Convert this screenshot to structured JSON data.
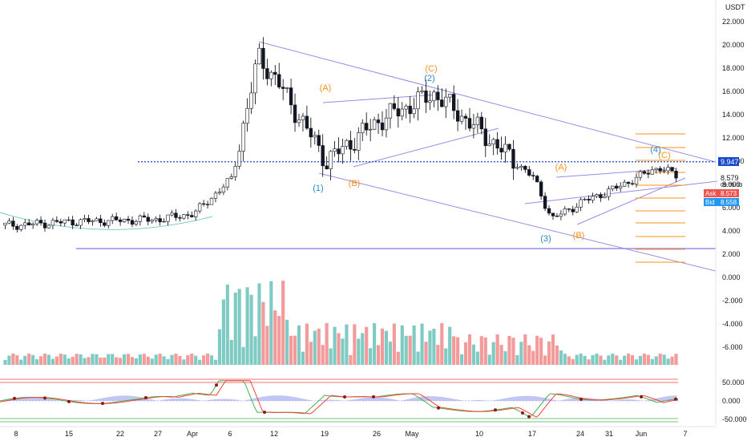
{
  "chart_data": {
    "type": "candlestick",
    "quote_currency": "USDT",
    "price_axis": {
      "ticks": [
        "22.000",
        "20.000",
        "18.000",
        "16.000",
        "14.000",
        "12.000",
        "10.000",
        "8.000",
        "6.000",
        "4.000",
        "2.000",
        "0.000",
        "-2.000",
        "-4.000",
        "-6.000"
      ],
      "range": [
        -7.0,
        23.0
      ]
    },
    "time_axis": {
      "ticks": [
        "8",
        "15",
        "22",
        "27",
        "Apr",
        "6",
        "12",
        "19",
        "26",
        "May",
        "10",
        "17",
        "24",
        "31",
        "Jun",
        "7"
      ]
    },
    "markers": {
      "last_price": "9.947",
      "current_price": "8.579",
      "countdown": "09:05:03",
      "ask": {
        "label": "Ask",
        "value": "8.573"
      },
      "bid": {
        "label": "Bid",
        "value": "8.558"
      }
    },
    "price_series_sampled": [
      {
        "date": "Mar 8",
        "close": 4.5
      },
      {
        "date": "Mar 15",
        "close": 4.8
      },
      {
        "date": "Mar 22",
        "close": 4.9
      },
      {
        "date": "Mar 27",
        "close": 5.0
      },
      {
        "date": "Apr 1",
        "close": 5.5
      },
      {
        "date": "Apr 6",
        "close": 8.5
      },
      {
        "date": "Apr 9",
        "close": 19.0
      },
      {
        "date": "Apr 12",
        "close": 17.0
      },
      {
        "date": "Apr 19",
        "close": 10.0
      },
      {
        "date": "Apr 26",
        "close": 13.5
      },
      {
        "date": "May 3",
        "close": 15.8
      },
      {
        "date": "May 10",
        "close": 12.5
      },
      {
        "date": "May 17",
        "close": 8.5
      },
      {
        "date": "May 19",
        "close": 5.0
      },
      {
        "date": "May 24",
        "close": 6.5
      },
      {
        "date": "May 31",
        "close": 7.5
      },
      {
        "date": "Jun 4",
        "close": 9.5
      },
      {
        "date": "Jun 6",
        "close": 8.6
      }
    ],
    "elliott_wave_labels": [
      {
        "label": "(A)",
        "color": "#f7931a"
      },
      {
        "label": "(C)",
        "color": "#f7931a"
      },
      {
        "label": "(2)",
        "color": "#2a8ac8"
      },
      {
        "label": "(1)",
        "color": "#2a8ac8"
      },
      {
        "label": "(B)",
        "color": "#f7931a"
      },
      {
        "label": "(A)",
        "color": "#f7931a"
      },
      {
        "label": "(3)",
        "color": "#2a8ac8"
      },
      {
        "label": "(B)",
        "color": "#f7931a"
      },
      {
        "label": "(4)",
        "color": "#2a8ac8"
      },
      {
        "label": "(C)",
        "color": "#f7931a"
      }
    ],
    "horizontal_levels": [
      9.947,
      2.6
    ],
    "oscillator": {
      "ticks": [
        "50.000",
        "0.000",
        "-50.000"
      ],
      "range": [
        -55,
        60
      ]
    },
    "colors": {
      "up": "#26a69a",
      "down": "#ef5350",
      "volume_up": "#7fcbc4",
      "volume_down": "#f39a9a",
      "trendline": "#9b8ae6",
      "level": "#1848cc",
      "fib": "#f7931a",
      "wave_blue": "#2a8ac8",
      "wave_orange": "#f7931a",
      "osc_green": "#4caf50",
      "osc_red": "#f44336",
      "osc_hist": "#b3b8ef"
    },
    "grid": false,
    "legend": "none"
  }
}
